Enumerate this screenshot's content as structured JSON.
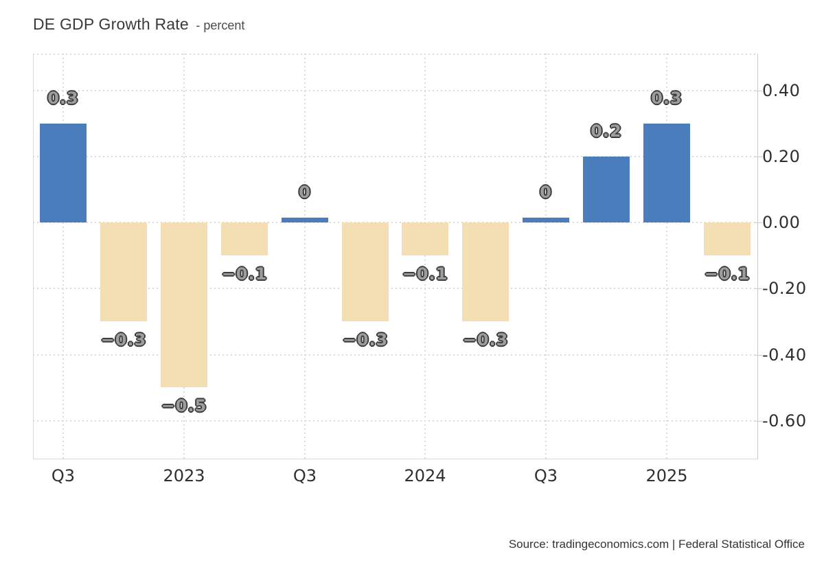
{
  "header": {
    "title": "DE GDP Growth Rate",
    "subtitle": "- percent"
  },
  "footer": {
    "source": "Source: tradingeconomics.com | Federal Statistical Office"
  },
  "chart_data": {
    "type": "bar",
    "title": "DE GDP Growth Rate",
    "subtitle": "- percent",
    "ylabel": "percent",
    "xlabel": "",
    "values": [
      0.3,
      -0.3,
      -0.5,
      -0.1,
      0,
      -0.3,
      -0.1,
      -0.3,
      0,
      0.2,
      0.3,
      -0.1
    ],
    "bar_labels": [
      "0.3",
      "−0.3",
      "−0.5",
      "−0.1",
      "0",
      "−0.3",
      "−0.1",
      "−0.3",
      "0",
      "0.2",
      "0.3",
      "−0.1"
    ],
    "x_tick_labels": [
      {
        "index": 0,
        "label": "Q3"
      },
      {
        "index": 2,
        "label": "2023"
      },
      {
        "index": 4,
        "label": "Q3"
      },
      {
        "index": 6,
        "label": "2024"
      },
      {
        "index": 8,
        "label": "Q3"
      },
      {
        "index": 10,
        "label": "2025"
      }
    ],
    "y_ticks": [
      0.4,
      0.2,
      0.0,
      -0.2,
      -0.4,
      -0.6
    ],
    "y_tick_labels": [
      "0.40",
      "0.20",
      "0.00",
      "-0.20",
      "-0.40",
      "-0.60"
    ],
    "ylim": [
      -0.717,
      0.512
    ],
    "grid": true,
    "legend": false,
    "colors": {
      "positive_bar": "#4a7dbc",
      "negative_bar": "#f4deb3",
      "grid_line": "#dadada",
      "axis_line": "#c9c9c9",
      "tick_text": "#2f2f2f",
      "label_fill": "#9d9d9d",
      "label_outline": "#3b3b3b"
    }
  }
}
